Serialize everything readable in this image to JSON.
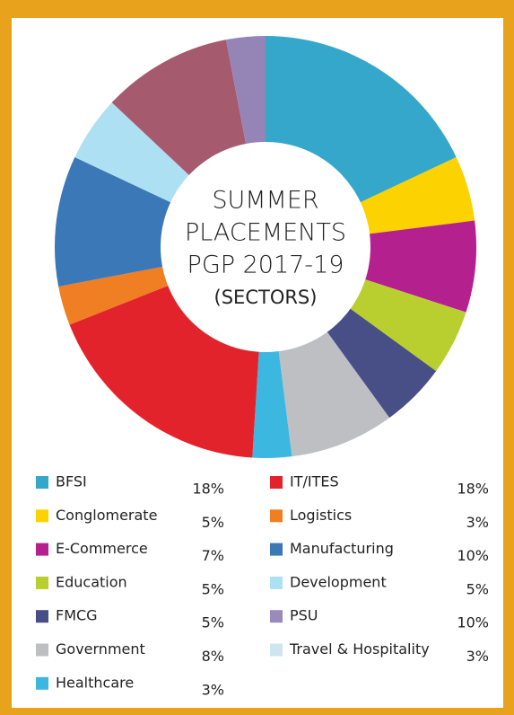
{
  "chart_data": {
    "type": "pie",
    "title": [
      "SUMMER",
      "PLACEMENTS",
      "PGP 2017-19"
    ],
    "subtitle": "(SECTORS)",
    "categories": [
      "BFSI",
      "Conglomerate",
      "E-Commerce",
      "Education",
      "FMCG",
      "Government",
      "Healthcare",
      "IT/ITES",
      "Logistics",
      "Manufacturing",
      "Development",
      "PSU",
      "Travel & Hospitality"
    ],
    "values": [
      18,
      5,
      7,
      5,
      5,
      8,
      3,
      18,
      3,
      10,
      5,
      10,
      3
    ],
    "value_labels": [
      "18%",
      "5%",
      "7%",
      "5%",
      "5%",
      "8%",
      "3%",
      "18%",
      "3%",
      "10%",
      "5%",
      "10%",
      "3%"
    ],
    "colors": [
      "#35a7cb",
      "#fcd200",
      "#b5208f",
      "#b9cf2f",
      "#474f86",
      "#bebfc3",
      "#3cb8e0",
      "#e3232c",
      "#ef7f22",
      "#3a78b8",
      "#aee0f4",
      "#a55a6e",
      "#9585b7"
    ],
    "legend_colors": [
      "#35a7cb",
      "#fcd200",
      "#b5208f",
      "#b9cf2f",
      "#474f86",
      "#bebfc3",
      "#3cb8e0",
      "#e3232c",
      "#ef7f22",
      "#3a78b8",
      "#aee0f4",
      "#9a8abb",
      "#cfe5f1"
    ]
  }
}
